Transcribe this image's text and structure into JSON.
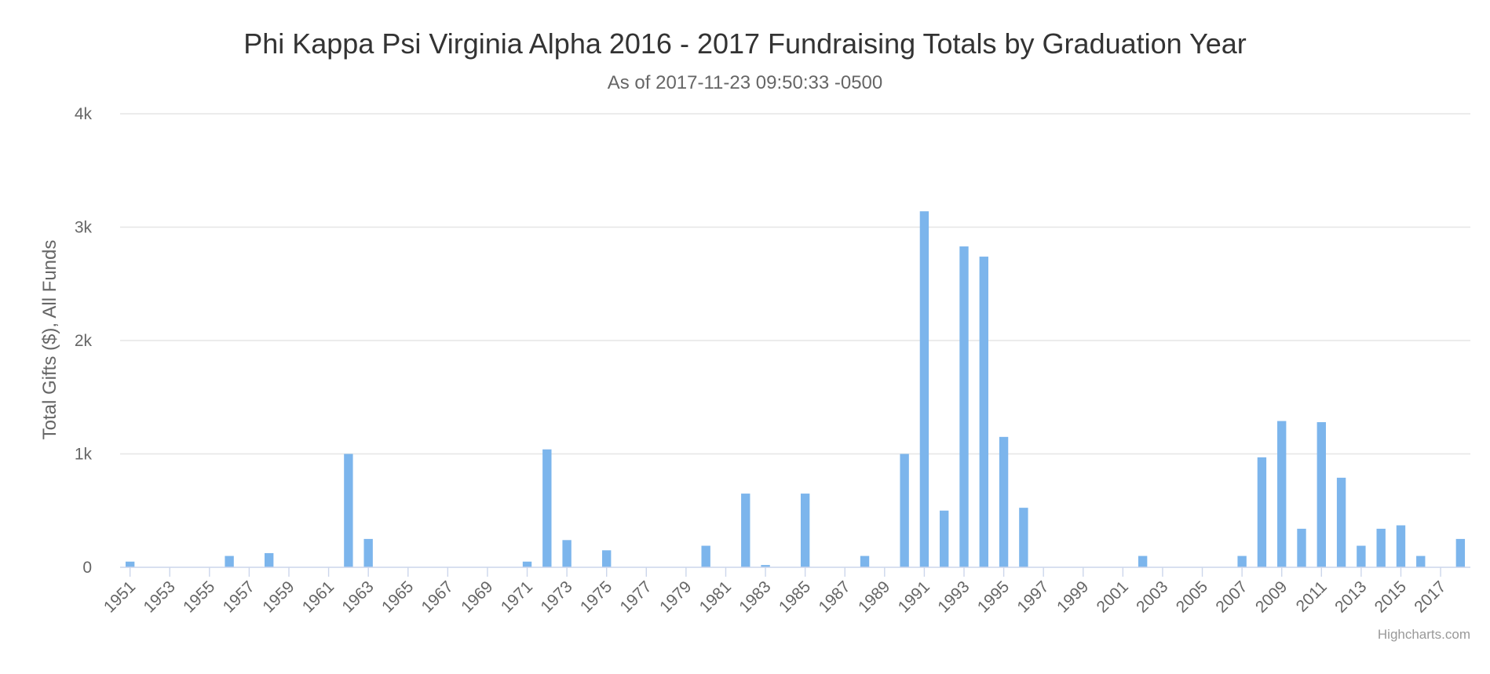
{
  "colors": {
    "bar": "#7cb5ec",
    "grid": "#e6e6e6",
    "axis": "#ccd6eb"
  },
  "credits": "Highcharts.com",
  "chart_data": {
    "type": "bar",
    "title": "Phi Kappa Psi Virginia Alpha 2016 - 2017 Fundraising Totals by Graduation Year",
    "subtitle": "As of 2017-11-23 09:50:33 -0500",
    "xlabel": "",
    "ylabel": "Total Gifts ($), All Funds",
    "ylim": [
      0,
      4000
    ],
    "y_ticks": [
      0,
      1000,
      2000,
      3000,
      4000
    ],
    "y_tick_labels": [
      "0",
      "1k",
      "2k",
      "3k",
      "4k"
    ],
    "x_tick_labels": [
      "1951",
      "1953",
      "1955",
      "1957",
      "1959",
      "1961",
      "1963",
      "1965",
      "1967",
      "1969",
      "1971",
      "1973",
      "1975",
      "1977",
      "1979",
      "1981",
      "1983",
      "1985",
      "1987",
      "1989",
      "1991",
      "1993",
      "1995",
      "1997",
      "1999",
      "2001",
      "2003",
      "2005",
      "2007",
      "2009",
      "2011",
      "2013",
      "2015",
      "2017"
    ],
    "grid": true,
    "legend": "none",
    "categories": [
      "1951",
      "1952",
      "1953",
      "1954",
      "1955",
      "1956",
      "1957",
      "1958",
      "1959",
      "1960",
      "1961",
      "1962",
      "1963",
      "1964",
      "1965",
      "1966",
      "1967",
      "1968",
      "1969",
      "1970",
      "1971",
      "1972",
      "1973",
      "1974",
      "1975",
      "1976",
      "1977",
      "1978",
      "1979",
      "1980",
      "1981",
      "1982",
      "1983",
      "1984",
      "1985",
      "1986",
      "1987",
      "1988",
      "1989",
      "1990",
      "1991",
      "1992",
      "1993",
      "1994",
      "1995",
      "1996",
      "1997",
      "1998",
      "1999",
      "2000",
      "2001",
      "2002",
      "2003",
      "2004",
      "2005",
      "2006",
      "2007",
      "2008",
      "2009",
      "2010",
      "2011",
      "2012",
      "2013",
      "2014",
      "2015",
      "2016",
      "2017",
      "2018"
    ],
    "values": [
      50,
      0,
      0,
      0,
      0,
      100,
      0,
      125,
      0,
      0,
      0,
      1000,
      250,
      0,
      0,
      0,
      0,
      0,
      0,
      0,
      50,
      1040,
      240,
      0,
      150,
      0,
      0,
      0,
      0,
      190,
      0,
      650,
      20,
      0,
      650,
      0,
      0,
      100,
      0,
      1000,
      3140,
      500,
      2830,
      2740,
      1150,
      525,
      0,
      0,
      0,
      0,
      0,
      100,
      0,
      0,
      0,
      0,
      100,
      970,
      1290,
      340,
      1280,
      790,
      190,
      340,
      370,
      100,
      0,
      250
    ]
  }
}
